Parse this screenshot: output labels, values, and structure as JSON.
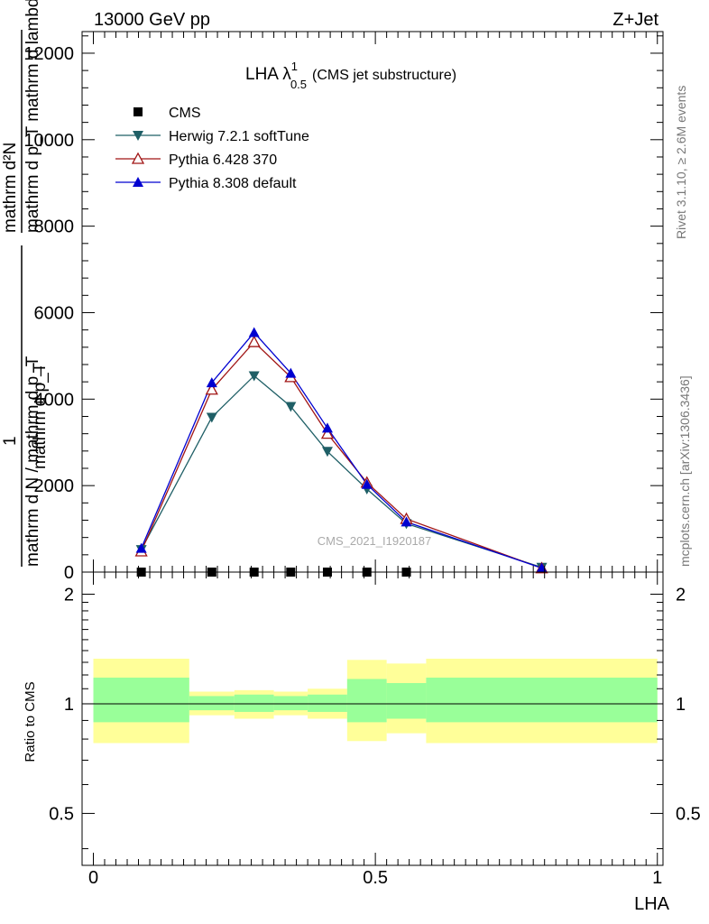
{
  "header": {
    "left": "13000 GeV pp",
    "right": "Z+Jet"
  },
  "plot_title": {
    "main": "LHA λ",
    "sup": "1",
    "sub": "0.5",
    "suffix": "(CMS jet substructure)"
  },
  "watermark": "CMS_2021_I1920187",
  "side_text": {
    "rivet": "Rivet 3.1.10, ≥ 2.6M events",
    "mcplots": "mcplots.cern.ch [arXiv:1306.3436]"
  },
  "main_ylabel": {
    "numerator_line1": "mathrm d²N",
    "numerator_line2": "mathrm d p_T mathrm d lambda",
    "one": "1",
    "denominator_line1": "mathrm d N / mathrm d p_T",
    "denominator_line2": "mathrm d p_T"
  },
  "ratio_ylabel": "Ratio to CMS",
  "xlabel": "LHA",
  "colors": {
    "herwig": "#1f5f66",
    "pythia6": "#a01414",
    "pythia8": "#0000d0",
    "band_outer": "#ffff99",
    "band_inner": "#99ff99"
  },
  "chart_data": [
    {
      "type": "line",
      "title": "LHA λ^1_0.5 (CMS jet substructure)",
      "xlabel": "",
      "ylabel": "1 / (mathrm d N / mathrm d p_T) · mathrm d²N / (mathrm d p_T mathrm d lambda)",
      "xlim": [
        -0.02,
        1.01
      ],
      "ylim": [
        0,
        12500
      ],
      "yticks": [
        0,
        2000,
        4000,
        6000,
        8000,
        10000,
        12000
      ],
      "ytick_labels": [
        "0",
        "2000",
        "4000",
        "6000",
        "8000",
        "10000",
        "12000"
      ],
      "legend_position": "top-left",
      "x": [
        0.085,
        0.21,
        0.285,
        0.35,
        0.415,
        0.485,
        0.555,
        0.795
      ],
      "series": [
        {
          "name": "CMS",
          "marker": "square",
          "values": [
            0,
            0,
            0,
            0,
            0,
            0,
            0,
            null
          ]
        },
        {
          "name": "Herwig 7.2.1 softTune",
          "marker": "triangle-down",
          "values": [
            520,
            3580,
            4540,
            3830,
            2790,
            1920,
            1120,
            110
          ]
        },
        {
          "name": "Pythia 6.428 370",
          "marker": "triangle-up-open",
          "values": [
            480,
            4220,
            5320,
            4510,
            3200,
            2070,
            1230,
            90
          ]
        },
        {
          "name": "Pythia 8.308 default",
          "marker": "triangle-up",
          "values": [
            550,
            4380,
            5540,
            4600,
            3330,
            2030,
            1160,
            95
          ]
        }
      ]
    },
    {
      "type": "area",
      "title": "",
      "xlabel": "LHA",
      "ylabel": "Ratio to CMS",
      "xlim": [
        -0.02,
        1.01
      ],
      "ylim": [
        0.36,
        2.3
      ],
      "log_y": true,
      "yticks": [
        0.5,
        1,
        2
      ],
      "ytick_labels": [
        "0.5",
        "1",
        "2"
      ],
      "xticks": [
        0,
        0.5,
        1
      ],
      "xtick_labels": [
        "0",
        "0.5",
        "1"
      ],
      "reference": 1.0,
      "bins": [
        {
          "x0": 0.0,
          "x1": 0.17,
          "outer": [
            0.78,
            1.33
          ],
          "inner": [
            0.89,
            1.18
          ]
        },
        {
          "x0": 0.17,
          "x1": 0.25,
          "outer": [
            0.93,
            1.08
          ],
          "inner": [
            0.96,
            1.05
          ]
        },
        {
          "x0": 0.25,
          "x1": 0.32,
          "outer": [
            0.91,
            1.09
          ],
          "inner": [
            0.95,
            1.06
          ]
        },
        {
          "x0": 0.32,
          "x1": 0.38,
          "outer": [
            0.93,
            1.08
          ],
          "inner": [
            0.96,
            1.05
          ]
        },
        {
          "x0": 0.38,
          "x1": 0.45,
          "outer": [
            0.91,
            1.1
          ],
          "inner": [
            0.95,
            1.06
          ]
        },
        {
          "x0": 0.45,
          "x1": 0.52,
          "outer": [
            0.79,
            1.32
          ],
          "inner": [
            0.89,
            1.17
          ]
        },
        {
          "x0": 0.52,
          "x1": 0.59,
          "outer": [
            0.83,
            1.29
          ],
          "inner": [
            0.91,
            1.14
          ]
        },
        {
          "x0": 0.59,
          "x1": 1.0,
          "outer": [
            0.78,
            1.33
          ],
          "inner": [
            0.89,
            1.18
          ]
        }
      ]
    }
  ]
}
